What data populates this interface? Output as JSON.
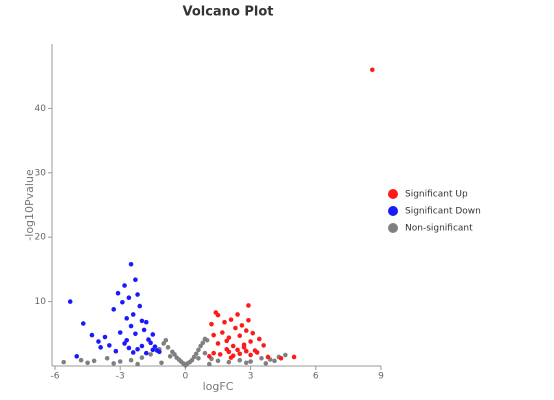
{
  "chart_data": {
    "type": "scatter",
    "title": "Volcano Plot",
    "x_label": "logFC",
    "y_label": "-log10Pvalue",
    "xlim": [
      -6,
      9
    ],
    "ylim": [
      0,
      50
    ],
    "xticks": [
      -6,
      -3,
      0,
      3,
      6,
      9
    ],
    "yticks": [
      10,
      20,
      30,
      40
    ],
    "legend": "right",
    "series": [
      {
        "name": "Significant Up",
        "color": "#ff1a1a",
        "x": [
          1.2,
          1.4,
          1.5,
          1.7,
          1.8,
          2.0,
          2.1,
          2.2,
          2.3,
          2.4,
          2.5,
          2.6,
          2.7,
          2.8,
          2.9,
          3.0,
          3.1,
          3.2,
          3.4,
          3.6,
          1.3,
          1.6,
          1.9,
          2.0,
          2.2,
          2.5,
          2.8,
          3.0,
          1.1,
          1.5,
          2.4,
          2.7,
          3.3,
          3.8,
          4.4,
          5.0,
          2.9,
          1.3,
          1.9,
          2.1,
          8.6
        ],
        "values": [
          6.5,
          8.3,
          7.9,
          5.2,
          6.8,
          4.4,
          7.2,
          3.1,
          5.9,
          8.0,
          4.7,
          6.3,
          2.9,
          5.5,
          9.4,
          3.8,
          5.1,
          2.4,
          4.2,
          3.2,
          2.0,
          1.8,
          2.6,
          2.2,
          1.6,
          1.9,
          2.3,
          1.7,
          1.5,
          3.5,
          2.5,
          3.3,
          2.1,
          1.4,
          1.2,
          1.4,
          7.1,
          4.8,
          3.9,
          1.3,
          46
        ]
      },
      {
        "name": "Significant Down",
        "color": "#1a1aff",
        "x": [
          -5.3,
          -4.7,
          -4.3,
          -4.0,
          -3.7,
          -3.5,
          -3.3,
          -3.1,
          -3.0,
          -2.9,
          -2.8,
          -2.7,
          -2.6,
          -2.5,
          -2.5,
          -2.4,
          -2.3,
          -2.2,
          -2.1,
          -2.0,
          -1.9,
          -1.8,
          -1.7,
          -1.6,
          -1.5,
          -1.4,
          -1.3,
          -1.2,
          -2.6,
          -2.4,
          -2.8,
          -2.2,
          -3.2,
          -1.8,
          -2.0,
          -3.9,
          -5.0,
          -2.7,
          -1.5,
          -2.3
        ],
        "values": [
          10.0,
          6.6,
          4.8,
          3.8,
          4.5,
          3.2,
          8.8,
          11.3,
          5.2,
          9.9,
          12.5,
          7.4,
          10.6,
          15.8,
          6.2,
          8.0,
          13.4,
          11.1,
          9.3,
          7.0,
          5.6,
          6.8,
          4.1,
          3.6,
          4.9,
          3.0,
          2.4,
          2.2,
          2.8,
          2.1,
          3.5,
          2.6,
          2.3,
          2.0,
          3.1,
          2.9,
          1.5,
          4.0,
          2.5,
          5.0
        ]
      },
      {
        "name": "Non-significant",
        "color": "#808080",
        "x": [
          -5.6,
          -4.8,
          -4.2,
          -3.6,
          -3.0,
          -2.5,
          -2.0,
          -1.6,
          -1.2,
          -1.0,
          -0.8,
          -0.6,
          -0.5,
          -0.4,
          -0.3,
          -0.2,
          -0.1,
          0.0,
          0.1,
          0.2,
          0.3,
          0.4,
          0.5,
          0.6,
          0.7,
          0.8,
          0.9,
          1.0,
          1.2,
          1.5,
          2.0,
          2.5,
          3.0,
          3.5,
          3.9,
          4.3,
          4.6,
          -0.9,
          0.9,
          -0.7,
          0.6,
          -1.1,
          1.1,
          -3.3,
          -2.2,
          2.8,
          3.7,
          -4.5,
          4.1,
          0.0
        ],
        "values": [
          0.6,
          0.9,
          0.8,
          1.2,
          0.7,
          0.9,
          1.3,
          1.8,
          2.6,
          3.5,
          2.9,
          2.2,
          1.8,
          1.3,
          1.0,
          0.7,
          0.4,
          0.2,
          0.4,
          0.6,
          0.9,
          1.4,
          1.9,
          2.5,
          3.1,
          3.6,
          4.2,
          4.0,
          1.1,
          0.8,
          0.6,
          0.9,
          0.7,
          1.2,
          1.0,
          1.4,
          1.7,
          4.0,
          2.0,
          1.5,
          1.2,
          0.5,
          0.3,
          0.4,
          0.3,
          0.5,
          0.4,
          0.5,
          0.8,
          0.1
        ]
      }
    ]
  }
}
